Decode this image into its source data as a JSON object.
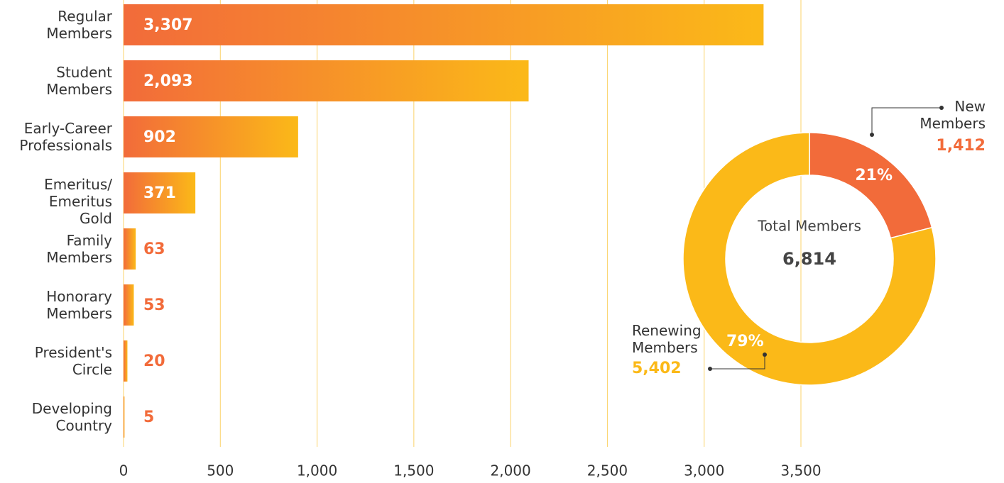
{
  "chart_data": [
    {
      "type": "bar",
      "orientation": "horizontal",
      "categories": [
        "Regular Members",
        "Student Members",
        "Early-Career Professionals",
        "Emeritus/ Emeritus Gold",
        "Family Members",
        "Honorary Members",
        "President's Circle",
        "Developing Country"
      ],
      "values": [
        3307,
        2093,
        902,
        371,
        63,
        53,
        20,
        5
      ],
      "value_labels": [
        "3,307",
        "2,093",
        "902",
        "371",
        "63",
        "53",
        "20",
        "5"
      ],
      "color": [
        "#f26b3a",
        "#fbb918"
      ],
      "xlim": [
        0,
        3500
      ],
      "xticks": [
        0,
        500,
        {
          "value": 1000,
          "label": "1,000"
        },
        {
          "value": 1500,
          "label": "1,500"
        },
        {
          "value": 2000,
          "label": "2,000"
        },
        {
          "value": 2500,
          "label": "2,500"
        },
        {
          "value": 3000,
          "label": "3,000"
        },
        {
          "value": 3500,
          "label": "3,500"
        }
      ],
      "grid": true
    },
    {
      "type": "donut",
      "categories": [
        "New Members",
        "Renewing Members"
      ],
      "values": [
        21,
        79
      ],
      "value_labels": [
        "21%",
        "79%"
      ],
      "counts": [
        1412,
        5402
      ],
      "count_labels": [
        "1,412",
        "5,402"
      ],
      "colors": [
        "#f26b3a",
        "#fbb918"
      ],
      "center_label": "Total Members",
      "total": 6814,
      "total_label": "6,814"
    }
  ]
}
